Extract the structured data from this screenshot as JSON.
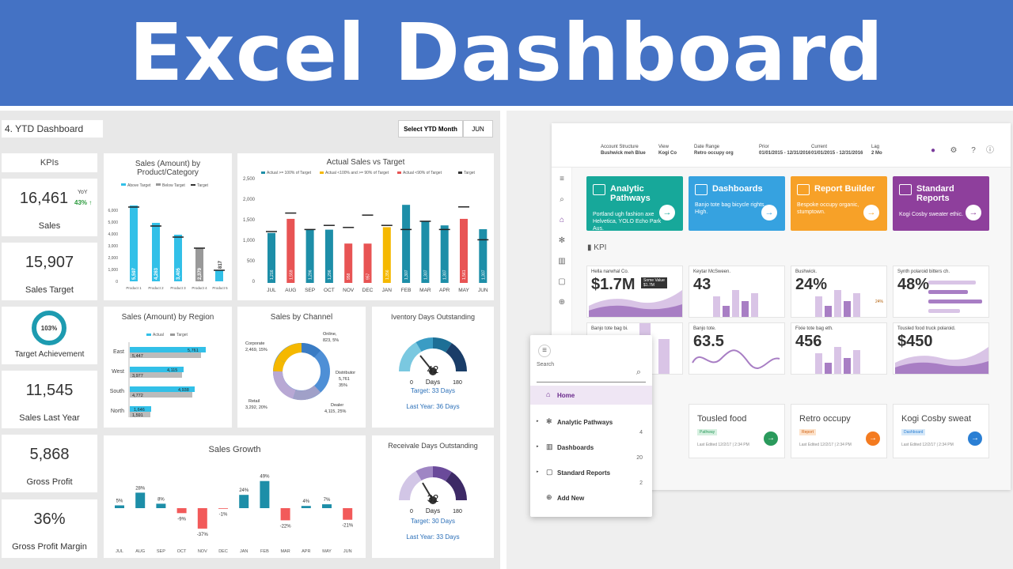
{
  "banner": {
    "title": "Excel Dashboard"
  },
  "excel": {
    "sheet_title": "4. YTD Dashboard",
    "select_label": "Select YTD Month",
    "select_value": "JUN",
    "kpis_header": "KPIs",
    "kpis": [
      {
        "value": "16,461",
        "label": "Sales",
        "yoy_label": "YoY",
        "yoy_value": "43%"
      },
      {
        "value": "15,907",
        "label": "Sales Target"
      },
      {
        "value": "103%",
        "label": "Target Achievement",
        "fraction": 1.0
      },
      {
        "value": "11,545",
        "label": "Sales Last Year"
      },
      {
        "value": "5,868",
        "label": "Gross Profit"
      },
      {
        "value": "36%",
        "label": "Gross Profit Margin"
      }
    ],
    "product_chart": {
      "title": "Sales (Amount) by Product/Category",
      "legend": [
        "Above Target",
        "Below Target",
        "Target"
      ],
      "y_ticks": [
        "6,000",
        "5,000",
        "4,000",
        "3,000",
        "2,000",
        "1,000",
        "0"
      ],
      "categories": [
        "Product 1",
        "Product 2",
        "Product 3",
        "Product 4",
        "Product 5"
      ],
      "labels": [
        "5,597",
        "4,263",
        "3,405",
        "2,379",
        "817"
      ]
    },
    "actual_chart": {
      "title": "Actual Sales vs Target",
      "legend": [
        "Actual >= 100% of Target",
        "Actual <100% and >= 90% of Target",
        "Actual <90% of Target",
        "Target"
      ],
      "y_ticks": [
        "2,500",
        "2,000",
        "1,500",
        "1,000",
        "500",
        "0"
      ],
      "months": [
        "JUL",
        "AUG",
        "SEP",
        "OCT",
        "NOV",
        "DEC",
        "JAN",
        "FEB",
        "MAR",
        "APR",
        "MAY",
        "JUN"
      ],
      "labels": [
        "1,216",
        "1,559",
        "1,296",
        "1,296",
        "958",
        "957",
        "1,356",
        "1,307",
        "1,307",
        "1,307",
        "1,561",
        "1,307"
      ]
    },
    "region_chart": {
      "title": "Sales (Amount) by Region",
      "legend": [
        "Actual",
        "Target"
      ],
      "regions": [
        "East",
        "West",
        "South",
        "North"
      ],
      "actual": [
        "5,761",
        "4,115",
        "4,938",
        "1,646"
      ],
      "target": [
        "5,447",
        "3,977",
        "4,772",
        "1,591"
      ]
    },
    "channel_chart": {
      "title": "Sales by Channel",
      "labels": [
        "Corporate\n2,469, 15%",
        "Online,\n823, 5%",
        "Distributor\n5,761\n35%",
        "Dealer\n4,115, 25%",
        "Retail\n3,292, 20%"
      ],
      "colors": [
        "#f5b800",
        "#3a7cc4",
        "#4e8fd6",
        "#a0a0c8",
        "#b8a8d4"
      ]
    },
    "inventory": {
      "title": "Iventory Days Outstanding",
      "value": "42",
      "unit": "Days",
      "min": "0",
      "max": "180",
      "target": "Target: 33 Days",
      "last_year": "Last Year: 36 Days"
    },
    "growth_chart": {
      "title": "Sales Growth",
      "months": [
        "JUL",
        "AUG",
        "SEP",
        "OCT",
        "NOV",
        "DEC",
        "JAN",
        "FEB",
        "MAR",
        "APR",
        "MAY",
        "JUN"
      ],
      "values": [
        "5%",
        "28%",
        "8%",
        "-9%",
        "-37%",
        "-1%",
        "24%",
        "49%",
        "-22%",
        "4%",
        "7%",
        "-21%"
      ]
    },
    "receivable": {
      "title": "Receivale Days Outstanding",
      "value": "32",
      "unit": "Days",
      "min": "0",
      "max": "180",
      "target": "Target: 30 Days",
      "last_year": "Last Year: 33 Days"
    }
  },
  "app": {
    "filters": [
      {
        "label": "Account Structure",
        "value": "Bushwick meh Blue"
      },
      {
        "label": "View",
        "value": "Kogi Co"
      },
      {
        "label": "Date Range",
        "value": "Retro occupy org"
      },
      {
        "label": "Prior",
        "value": "01/01/2015 - 12/31/2016"
      },
      {
        "label": "Current",
        "value": "01/01/2015 - 12/31/2016"
      },
      {
        "label": "Lag",
        "value": "2 Mo"
      }
    ],
    "tiles": [
      {
        "title": "Analytic Pathways",
        "desc": "Portland ugh fashion axe Helvetica, YOLO Echo Park Aus.",
        "color": "#17a89a"
      },
      {
        "title": "Dashboards",
        "desc": "Banjo tote bag bicycle rights, High.",
        "color": "#36a2e0"
      },
      {
        "title": "Report Builder",
        "desc": "Bespoke occupy organic, stumptown.",
        "color": "#f7a128"
      },
      {
        "title": "Standard Reports",
        "desc": "Kogi Cosby sweater ethic.",
        "color": "#8e3f9c"
      }
    ],
    "kpi_section": "KPI",
    "kpi_cards": [
      {
        "title": "Hella narwhal Co.",
        "value": "$1.7M",
        "tooltip": "Some Value",
        "tooltip_val": "$1.7M"
      },
      {
        "title": "Keytar McSween.",
        "value": "43"
      },
      {
        "title": "Bushwick.",
        "value": "24%",
        "marker": "24%"
      },
      {
        "title": "Synth polaroid bitters ch.",
        "value": "48%"
      },
      {
        "title": "Banjo tote bag bi.",
        "value": ""
      },
      {
        "title": "Banjo tote.",
        "value": "63.5"
      },
      {
        "title": "Fixie tote bag eth.",
        "value": "456"
      },
      {
        "title": "Tousled food truck polaroid.",
        "value": "$450"
      }
    ],
    "bottom_cards": [
      {
        "title": "Tousled food",
        "tag": "Pathway",
        "meta": "Last Edited 12/2/17 | 2:34 PM",
        "color": "#2a9a5c",
        "tag_bg": "#d6f0e0",
        "tag_fg": "#2a9a5c"
      },
      {
        "title": "Retro occupy",
        "tag": "Report",
        "meta": "Last Edited 12/2/17 | 2:34 PM",
        "color": "#f47b20",
        "tag_bg": "#fde3cc",
        "tag_fg": "#d06010"
      },
      {
        "title": "Kogi Cosby sweat",
        "tag": "Dashboard",
        "meta": "Last Edited 12/2/17 | 2:34 PM",
        "color": "#2a7fd4",
        "tag_bg": "#d6e8f8",
        "tag_fg": "#2a7fd4"
      }
    ],
    "menu": {
      "search": "Search",
      "items": [
        {
          "label": "Home",
          "count": ""
        },
        {
          "label": "Analytic Pathways",
          "count": "4"
        },
        {
          "label": "Dashboards",
          "count": "20"
        },
        {
          "label": "Standard Reports",
          "count": "2"
        },
        {
          "label": "Add New",
          "count": ""
        }
      ]
    }
  }
}
